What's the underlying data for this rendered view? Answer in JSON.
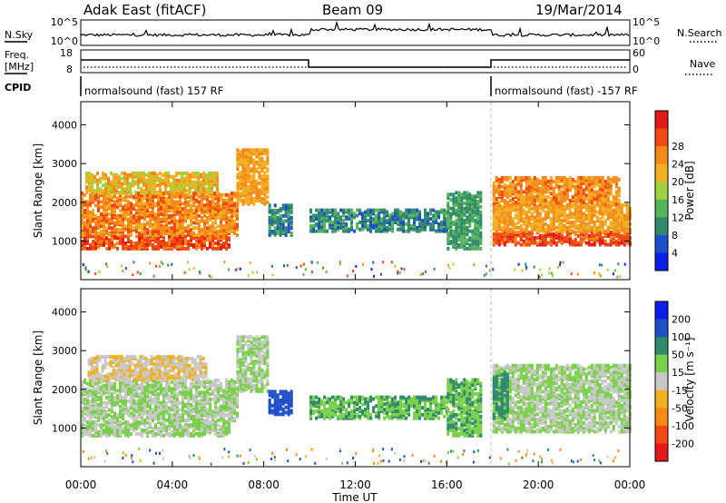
{
  "header": {
    "station": "Adak East (fitACF)",
    "beam": "Beam 09",
    "date": "19/Mar/2014"
  },
  "panels": {
    "nsky": {
      "left_label": "N.Sky",
      "left_ticks": [
        "10^5",
        "10^0"
      ],
      "right_label": "N.Search",
      "right_ticks": [
        "10^5",
        "10^0"
      ]
    },
    "freq": {
      "left_label_1": "Freq.",
      "left_label_2": "[MHz]",
      "left_ticks": [
        "18",
        "8"
      ],
      "right_label": "Nave",
      "right_ticks": [
        "60",
        "0"
      ]
    },
    "cpid": {
      "label": "CPID",
      "segment_1": "normalsound (fast) 157 RF",
      "segment_2": "normalsound (fast) -157 RF"
    }
  },
  "chart_data": [
    {
      "type": "heatmap",
      "name": "power",
      "ylabel": "Slant Range [km]",
      "yticks": [
        "1000",
        "2000",
        "3000",
        "4000"
      ],
      "ylim": [
        0,
        4600
      ],
      "colorbar_label": "Power [dB]",
      "colorbar_ticks": [
        "4",
        "8",
        "12",
        "16",
        "20",
        "24",
        "28"
      ],
      "colorbar_colors": [
        "#0a1eea",
        "#1f4fc8",
        "#2f8a6a",
        "#55b35a",
        "#9fd140",
        "#f0b020",
        "#f58a1a",
        "#f04a10",
        "#e41a1a"
      ],
      "echo_regions": [
        {
          "t0": 0.0,
          "t1": 6.5,
          "r0": 850,
          "r1": 1200,
          "level": 28
        },
        {
          "t0": 0.0,
          "t1": 6.8,
          "r0": 1200,
          "r1": 2300,
          "level": 24
        },
        {
          "t0": 0.2,
          "t1": 6.0,
          "r0": 2300,
          "r1": 2800,
          "level": 20
        },
        {
          "t0": 6.8,
          "t1": 8.2,
          "r0": 2000,
          "r1": 3400,
          "level": 22
        },
        {
          "t0": 8.2,
          "t1": 9.2,
          "r0": 1200,
          "r1": 2000,
          "level": 8
        },
        {
          "t0": 10.0,
          "t1": 16.0,
          "r0": 1300,
          "r1": 1850,
          "level": 8
        },
        {
          "t0": 16.0,
          "t1": 17.5,
          "r0": 850,
          "r1": 2300,
          "level": 10
        },
        {
          "t0": 18.0,
          "t1": 24.0,
          "r0": 950,
          "r1": 1300,
          "level": 28
        },
        {
          "t0": 18.0,
          "t1": 24.0,
          "r0": 1300,
          "r1": 2000,
          "level": 22
        },
        {
          "t0": 18.0,
          "t1": 23.5,
          "r0": 2000,
          "r1": 2700,
          "level": 24
        }
      ]
    },
    {
      "type": "heatmap",
      "name": "velocity",
      "ylabel": "Slant Range [km]",
      "yticks": [
        "1000",
        "2000",
        "3000",
        "4000"
      ],
      "ylim": [
        0,
        4600
      ],
      "xlabel": "Time UT",
      "xticks": [
        "00:00",
        "04:00",
        "08:00",
        "12:00",
        "16:00",
        "20:00",
        "00:00"
      ],
      "xlim": [
        0,
        24
      ],
      "colorbar_label": "Velocity [m s⁻¹]",
      "colorbar_ticks": [
        "200",
        "100",
        "50",
        "15",
        "-15",
        "-50",
        "-100",
        "-200"
      ],
      "colorbar_colors": [
        "#0a1eea",
        "#1f4fc8",
        "#2f8a6a",
        "#7ad04a",
        "#c8c8c8",
        "#f0b020",
        "#f58a1a",
        "#f04a10",
        "#e41a1a"
      ],
      "echo_regions": [
        {
          "t0": 0.0,
          "t1": 6.5,
          "r0": 850,
          "r1": 1200,
          "level": 0
        },
        {
          "t0": 0.0,
          "t1": 6.8,
          "r0": 1200,
          "r1": 2300,
          "level": 0
        },
        {
          "t0": 0.3,
          "t1": 5.5,
          "r0": 2300,
          "r1": 2900,
          "level": -30
        },
        {
          "t0": 6.8,
          "t1": 8.2,
          "r0": 2000,
          "r1": 3400,
          "level": 0
        },
        {
          "t0": 8.2,
          "t1": 9.2,
          "r0": 1400,
          "r1": 2000,
          "level": 120
        },
        {
          "t0": 10.0,
          "t1": 16.0,
          "r0": 1300,
          "r1": 1850,
          "level": 30
        },
        {
          "t0": 16.0,
          "t1": 17.5,
          "r0": 850,
          "r1": 2300,
          "level": 30
        },
        {
          "t0": 18.0,
          "t1": 24.0,
          "r0": 950,
          "r1": 2700,
          "level": 0
        },
        {
          "t0": 18.0,
          "t1": 18.6,
          "r0": 1300,
          "r1": 2500,
          "level": 40
        }
      ]
    }
  ]
}
